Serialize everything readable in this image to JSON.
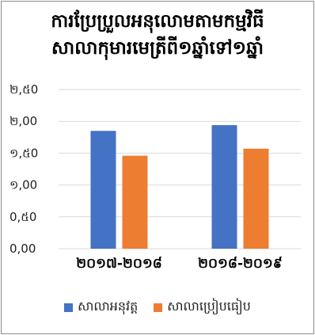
{
  "chart_data": {
    "type": "bar",
    "title_lines": [
      "ការប្រែប្រួលអនុលោមតាមកម្មវិធី",
      "សាលាកុមារមេត្រីពី១ឆ្នាំទៅ១ឆ្នាំ"
    ],
    "categories": [
      "២០១៧-២០១៨",
      "២០១៨-២០១៩"
    ],
    "series": [
      {
        "name": "សាលាអនុវត្ត",
        "color": "#4472c4",
        "values": [
          1.85,
          1.94
        ]
      },
      {
        "name": "សាលាប្រៀបធៀប",
        "color": "#ed7d31",
        "values": [
          1.46,
          1.57
        ]
      }
    ],
    "ylim": [
      0,
      2.5
    ],
    "yticks": [
      {
        "value": 0,
        "label": "0,00"
      },
      {
        "value": 0.5,
        "label": "0,៥0"
      },
      {
        "value": 1.0,
        "label": "១,00"
      },
      {
        "value": 1.5,
        "label": "១,៥0"
      },
      {
        "value": 2.0,
        "label": "២,00"
      },
      {
        "value": 2.5,
        "label": "២,៥0"
      }
    ],
    "grid": true,
    "legend_position": "bottom",
    "gridline_color": "#d9d9d9"
  }
}
